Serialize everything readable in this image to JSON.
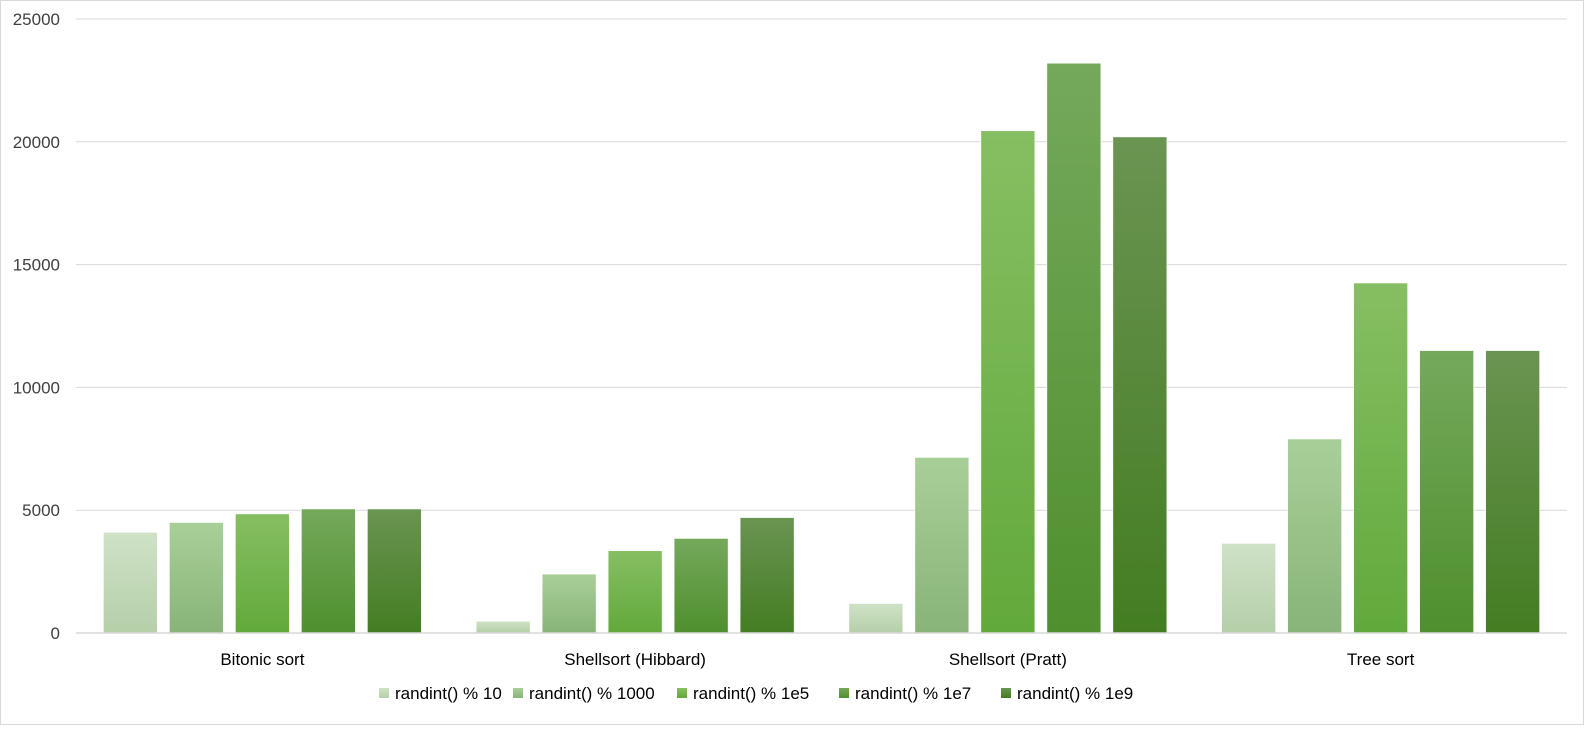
{
  "chart_data": {
    "type": "bar",
    "title": "",
    "xlabel": "",
    "ylabel": "",
    "ylim": [
      0,
      25000
    ],
    "yticks": [
      0,
      5000,
      10000,
      15000,
      20000,
      25000
    ],
    "ytick_labels": [
      "0",
      "5000",
      "10000",
      "15000",
      "20000",
      "25000"
    ],
    "grid": true,
    "legend_position": "bottom",
    "categories": [
      "Bitonic sort",
      "Shellsort (Hibbard)",
      "Shellsort (Pratt)",
      "Tree sort"
    ],
    "series": [
      {
        "name": "randint() % 10",
        "values": [
          4100,
          480,
          1200,
          3650
        ],
        "color_top": "#cfe2c6",
        "color_bottom": "#b5cfa9"
      },
      {
        "name": "randint() % 1000",
        "values": [
          4500,
          2400,
          7150,
          7900
        ],
        "color_top": "#a9cf98",
        "color_bottom": "#88b477"
      },
      {
        "name": "randint() % 1e5",
        "values": [
          4850,
          3350,
          20450,
          14250
        ],
        "color_top": "#86bf62",
        "color_bottom": "#62a93b"
      },
      {
        "name": "randint() % 1e7",
        "values": [
          5050,
          3850,
          23200,
          11500
        ],
        "color_top": "#74a95b",
        "color_bottom": "#4f8f2e"
      },
      {
        "name": "randint() % 1e9",
        "values": [
          5050,
          4700,
          20200,
          11500
        ],
        "color_top": "#6b9452",
        "color_bottom": "#437d22"
      }
    ]
  }
}
